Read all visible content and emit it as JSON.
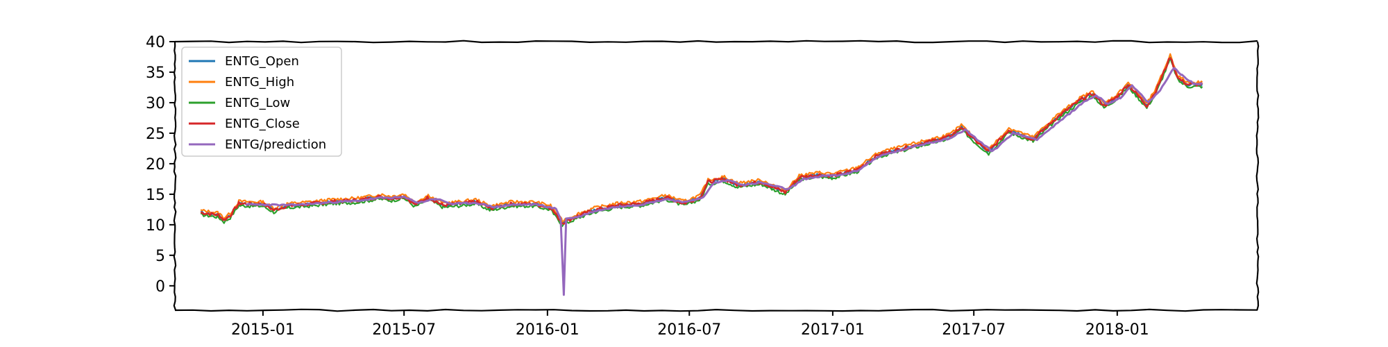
{
  "chart_data": {
    "type": "line",
    "xlim": [
      "2014-09-10",
      "2018-06-30"
    ],
    "ylim": [
      -4,
      40
    ],
    "yticks": [
      0,
      5,
      10,
      15,
      20,
      25,
      30,
      35,
      40
    ],
    "xticks": [
      {
        "date": "2015-01-01",
        "label": "2015-01"
      },
      {
        "date": "2015-07-01",
        "label": "2015-07"
      },
      {
        "date": "2016-01-01",
        "label": "2016-01"
      },
      {
        "date": "2016-07-01",
        "label": "2016-07"
      },
      {
        "date": "2017-01-01",
        "label": "2017-01"
      },
      {
        "date": "2017-07-01",
        "label": "2017-07"
      },
      {
        "date": "2018-01-01",
        "label": "2018-01"
      }
    ],
    "legend": {
      "position": "upper-left"
    },
    "series": [
      {
        "name": "ENTG_Open",
        "color": "#1f77b4"
      },
      {
        "name": "ENTG_High",
        "color": "#ff7f0e"
      },
      {
        "name": "ENTG_Low",
        "color": "#2ca02c"
      },
      {
        "name": "ENTG_Close",
        "color": "#d62728"
      },
      {
        "name": "ENTG/prediction",
        "color": "#9467bd"
      }
    ],
    "close_points": [
      [
        "2014-10-13",
        12.0
      ],
      [
        "2014-10-25",
        11.8
      ],
      [
        "2014-11-05",
        11.6
      ],
      [
        "2014-11-12",
        10.8
      ],
      [
        "2014-11-20",
        11.5
      ],
      [
        "2014-12-01",
        13.5
      ],
      [
        "2014-12-15",
        13.4
      ],
      [
        "2015-01-01",
        13.4
      ],
      [
        "2015-01-15",
        12.4
      ],
      [
        "2015-02-01",
        13.1
      ],
      [
        "2015-03-01",
        13.4
      ],
      [
        "2015-04-01",
        13.8
      ],
      [
        "2015-05-01",
        14.0
      ],
      [
        "2015-06-01",
        14.6
      ],
      [
        "2015-06-15",
        14.3
      ],
      [
        "2015-07-01",
        14.7
      ],
      [
        "2015-07-15",
        13.3
      ],
      [
        "2015-08-01",
        14.5
      ],
      [
        "2015-08-20",
        13.2
      ],
      [
        "2015-09-15",
        13.5
      ],
      [
        "2015-10-01",
        13.8
      ],
      [
        "2015-10-20",
        12.7
      ],
      [
        "2015-11-15",
        13.4
      ],
      [
        "2015-12-15",
        13.4
      ],
      [
        "2016-01-05",
        12.8
      ],
      [
        "2016-01-20",
        10.3
      ],
      [
        "2016-02-10",
        11.5
      ],
      [
        "2016-03-01",
        12.4
      ],
      [
        "2016-04-01",
        13.2
      ],
      [
        "2016-05-01",
        13.5
      ],
      [
        "2016-06-01",
        14.5
      ],
      [
        "2016-06-24",
        13.5
      ],
      [
        "2016-07-15",
        14.5
      ],
      [
        "2016-07-25",
        17.0
      ],
      [
        "2016-08-15",
        17.5
      ],
      [
        "2016-09-01",
        16.5
      ],
      [
        "2016-10-01",
        17.0
      ],
      [
        "2016-11-01",
        15.3
      ],
      [
        "2016-11-20",
        17.8
      ],
      [
        "2016-12-15",
        18.2
      ],
      [
        "2017-01-01",
        18.0
      ],
      [
        "2017-02-01",
        19.0
      ],
      [
        "2017-03-01",
        21.5
      ],
      [
        "2017-04-01",
        22.5
      ],
      [
        "2017-05-01",
        23.5
      ],
      [
        "2017-06-01",
        24.5
      ],
      [
        "2017-06-15",
        26.0
      ],
      [
        "2017-07-01",
        24.0
      ],
      [
        "2017-07-20",
        22.0
      ],
      [
        "2017-08-15",
        25.5
      ],
      [
        "2017-09-15",
        24.0
      ],
      [
        "2017-10-15",
        27.5
      ],
      [
        "2017-11-15",
        30.5
      ],
      [
        "2017-12-01",
        31.5
      ],
      [
        "2017-12-15",
        29.5
      ],
      [
        "2018-01-01",
        31.0
      ],
      [
        "2018-01-15",
        33.0
      ],
      [
        "2018-02-08",
        29.5
      ],
      [
        "2018-02-20",
        32.0
      ],
      [
        "2018-03-10",
        37.5
      ],
      [
        "2018-03-20",
        34.0
      ],
      [
        "2018-04-01",
        33.0
      ],
      [
        "2018-04-20",
        33.0
      ]
    ],
    "prediction_points": [
      [
        "2014-12-10",
        13.3
      ],
      [
        "2015-01-01",
        13.3
      ],
      [
        "2015-02-01",
        13.2
      ],
      [
        "2015-03-01",
        13.4
      ],
      [
        "2015-04-01",
        13.7
      ],
      [
        "2015-05-01",
        13.9
      ],
      [
        "2015-06-01",
        14.4
      ],
      [
        "2015-07-01",
        14.5
      ],
      [
        "2015-07-20",
        13.6
      ],
      [
        "2015-08-10",
        14.3
      ],
      [
        "2015-09-01",
        13.4
      ],
      [
        "2015-10-01",
        13.6
      ],
      [
        "2015-10-25",
        12.9
      ],
      [
        "2015-11-20",
        13.3
      ],
      [
        "2015-12-20",
        13.3
      ],
      [
        "2016-01-12",
        12.6
      ],
      [
        "2016-01-18",
        11.0
      ],
      [
        "2016-01-22",
        -1.5
      ],
      [
        "2016-01-25",
        11.0
      ],
      [
        "2016-02-10",
        11.3
      ],
      [
        "2016-03-01",
        12.2
      ],
      [
        "2016-04-01",
        13.0
      ],
      [
        "2016-05-01",
        13.3
      ],
      [
        "2016-06-01",
        14.2
      ],
      [
        "2016-06-28",
        13.7
      ],
      [
        "2016-07-20",
        14.6
      ],
      [
        "2016-08-01",
        16.8
      ],
      [
        "2016-08-20",
        17.3
      ],
      [
        "2016-09-10",
        16.5
      ],
      [
        "2016-10-01",
        16.9
      ],
      [
        "2016-11-05",
        15.8
      ],
      [
        "2016-11-25",
        17.5
      ],
      [
        "2016-12-20",
        18.0
      ],
      [
        "2017-01-10",
        18.1
      ],
      [
        "2017-02-01",
        18.8
      ],
      [
        "2017-03-01",
        21.2
      ],
      [
        "2017-04-01",
        22.3
      ],
      [
        "2017-05-01",
        23.3
      ],
      [
        "2017-06-01",
        24.2
      ],
      [
        "2017-06-20",
        25.6
      ],
      [
        "2017-07-05",
        24.0
      ],
      [
        "2017-07-25",
        22.0
      ],
      [
        "2017-08-20",
        25.0
      ],
      [
        "2017-09-20",
        24.0
      ],
      [
        "2017-10-20",
        27.0
      ],
      [
        "2017-11-20",
        30.2
      ],
      [
        "2017-12-05",
        31.2
      ],
      [
        "2017-12-20",
        29.8
      ],
      [
        "2018-01-05",
        30.8
      ],
      [
        "2018-01-20",
        32.8
      ],
      [
        "2018-02-10",
        30.0
      ],
      [
        "2018-02-25",
        32.0
      ],
      [
        "2018-03-15",
        35.8
      ],
      [
        "2018-03-25",
        34.5
      ],
      [
        "2018-04-10",
        33.0
      ],
      [
        "2018-04-20",
        33.2
      ]
    ]
  }
}
